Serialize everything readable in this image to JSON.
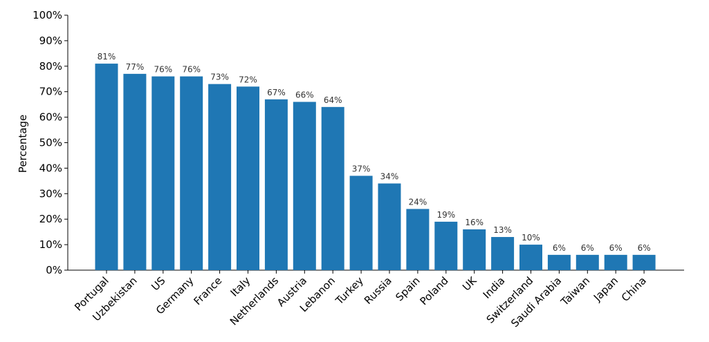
{
  "chart_data": {
    "type": "bar",
    "ylabel": "Percentage",
    "xlabel": "",
    "ylim": [
      0,
      100
    ],
    "yticks": [
      "0%",
      "10%",
      "20%",
      "30%",
      "40%",
      "50%",
      "60%",
      "70%",
      "80%",
      "90%",
      "100%"
    ],
    "grid": false,
    "bar_color": "#1f77b4",
    "categories": [
      "Portugal",
      "Uzbekistan",
      "US",
      "Germany",
      "France",
      "Italy",
      "Netherlands",
      "Austria",
      "Lebanon",
      "Turkey",
      "Russia",
      "Spain",
      "Poland",
      "UK",
      "India",
      "Switzerland",
      "Saudi Arabia",
      "Taiwan",
      "Japan",
      "China"
    ],
    "values": [
      81,
      77,
      76,
      76,
      73,
      72,
      67,
      66,
      64,
      37,
      34,
      24,
      19,
      16,
      13,
      10,
      6,
      6,
      6,
      6
    ],
    "value_labels": [
      "81%",
      "77%",
      "76%",
      "76%",
      "73%",
      "72%",
      "67%",
      "66%",
      "64%",
      "37%",
      "34%",
      "24%",
      "19%",
      "16%",
      "13%",
      "10%",
      "6%",
      "6%",
      "6%",
      "6%"
    ]
  }
}
